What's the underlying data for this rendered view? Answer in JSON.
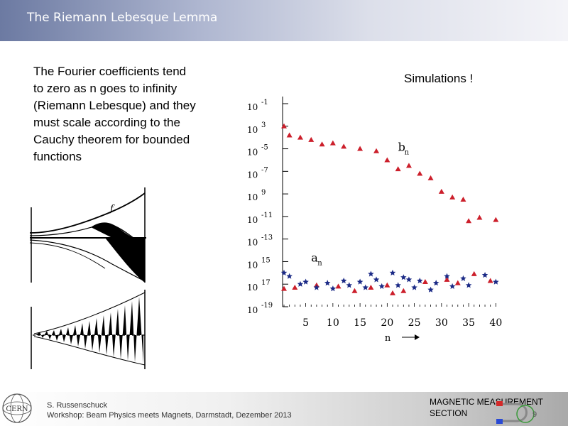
{
  "header": {
    "title": "The Riemann Lebesque Lemma"
  },
  "body": {
    "lines": [
      "The Fourier coefficients tend",
      "to zero as n goes to infinity",
      "(Riemann Lebesque) and they",
      "must scale according to the",
      "Cauchy theorem for bounded",
      "functions"
    ]
  },
  "figure_left": {
    "f_label": "f"
  },
  "simulation_label": "Simulations !",
  "chart_data": {
    "type": "scatter",
    "xlabel": "n",
    "ylabel": "",
    "scale": "log-y",
    "x_ticks": [
      "5",
      "10",
      "15",
      "20",
      "25",
      "30",
      "35",
      "40"
    ],
    "y_ticks": [
      {
        "base": "10",
        "exp": "-1"
      },
      {
        "base": "10",
        "exp": "3"
      },
      {
        "base": "10",
        "exp": "-5"
      },
      {
        "base": "10",
        "exp": "-7"
      },
      {
        "base": "10",
        "exp": "9"
      },
      {
        "base": "10",
        "exp": "-11"
      },
      {
        "base": "10",
        "exp": "-13"
      },
      {
        "base": "10",
        "exp": "15"
      },
      {
        "base": "10",
        "exp": "17"
      },
      {
        "base": "10",
        "exp": "-19"
      }
    ],
    "ylim_exponent": [
      -19,
      -1
    ],
    "xlim": [
      1,
      41
    ],
    "annotations": [
      {
        "text": "b",
        "sub": "n",
        "x": 22,
        "y_exp": -5.2
      },
      {
        "text": "a",
        "sub": "n",
        "x": 6,
        "y_exp": -15.0
      }
    ],
    "series": [
      {
        "color": "#cc1f2b",
        "marker": "triangle",
        "points": [
          [
            1,
            -3.0
          ],
          [
            2,
            -3.8
          ],
          [
            4,
            -4.0
          ],
          [
            6,
            -4.2
          ],
          [
            8,
            -4.6
          ],
          [
            10,
            -4.5
          ],
          [
            12,
            -4.8
          ],
          [
            15,
            -5.0
          ],
          [
            18,
            -5.2
          ],
          [
            20,
            -6.0
          ],
          [
            22,
            -6.8
          ],
          [
            24,
            -6.5
          ],
          [
            26,
            -7.2
          ],
          [
            28,
            -7.6
          ],
          [
            30,
            -8.8
          ],
          [
            32,
            -9.3
          ],
          [
            34,
            -9.5
          ],
          [
            35,
            -11.4
          ],
          [
            37,
            -11.1
          ],
          [
            40,
            -11.3
          ],
          [
            1,
            -17.4
          ],
          [
            3,
            -17.3
          ],
          [
            7,
            -17.1
          ],
          [
            11,
            -17.2
          ],
          [
            14,
            -17.6
          ],
          [
            17,
            -17.3
          ],
          [
            20,
            -17.1
          ],
          [
            23,
            -17.6
          ],
          [
            27,
            -16.8
          ],
          [
            31,
            -16.6
          ],
          [
            33,
            -16.9
          ],
          [
            36,
            -16.1
          ],
          [
            39,
            -16.7
          ],
          [
            21,
            -17.8
          ]
        ]
      },
      {
        "color": "#1b2a86",
        "marker": "star",
        "points": [
          [
            2,
            -16.3
          ],
          [
            4,
            -17.0
          ],
          [
            5,
            -16.8
          ],
          [
            7,
            -17.3
          ],
          [
            9,
            -16.9
          ],
          [
            10,
            -17.4
          ],
          [
            12,
            -16.7
          ],
          [
            13,
            -17.1
          ],
          [
            15,
            -16.8
          ],
          [
            16,
            -17.3
          ],
          [
            18,
            -16.6
          ],
          [
            19,
            -17.2
          ],
          [
            21,
            -16.0
          ],
          [
            22,
            -17.1
          ],
          [
            24,
            -16.6
          ],
          [
            25,
            -17.3
          ],
          [
            26,
            -16.7
          ],
          [
            28,
            -17.5
          ],
          [
            29,
            -16.9
          ],
          [
            31,
            -16.3
          ],
          [
            32,
            -17.2
          ],
          [
            34,
            -16.5
          ],
          [
            35,
            -17.1
          ],
          [
            38,
            -16.2
          ],
          [
            40,
            -16.8
          ],
          [
            1,
            -16.0
          ],
          [
            17,
            -16.1
          ],
          [
            23,
            -16.4
          ]
        ]
      }
    ]
  },
  "footer": {
    "author": "S. Russenschuck",
    "workshop": "Workshop: Beam Physics meets Magnets, Darmstadt, Dezember 2013",
    "group_line1": "MAGNETIC MEASUREMENT",
    "group_line2": "SECTION",
    "page": "9",
    "cern_logo_text": "CERN"
  }
}
